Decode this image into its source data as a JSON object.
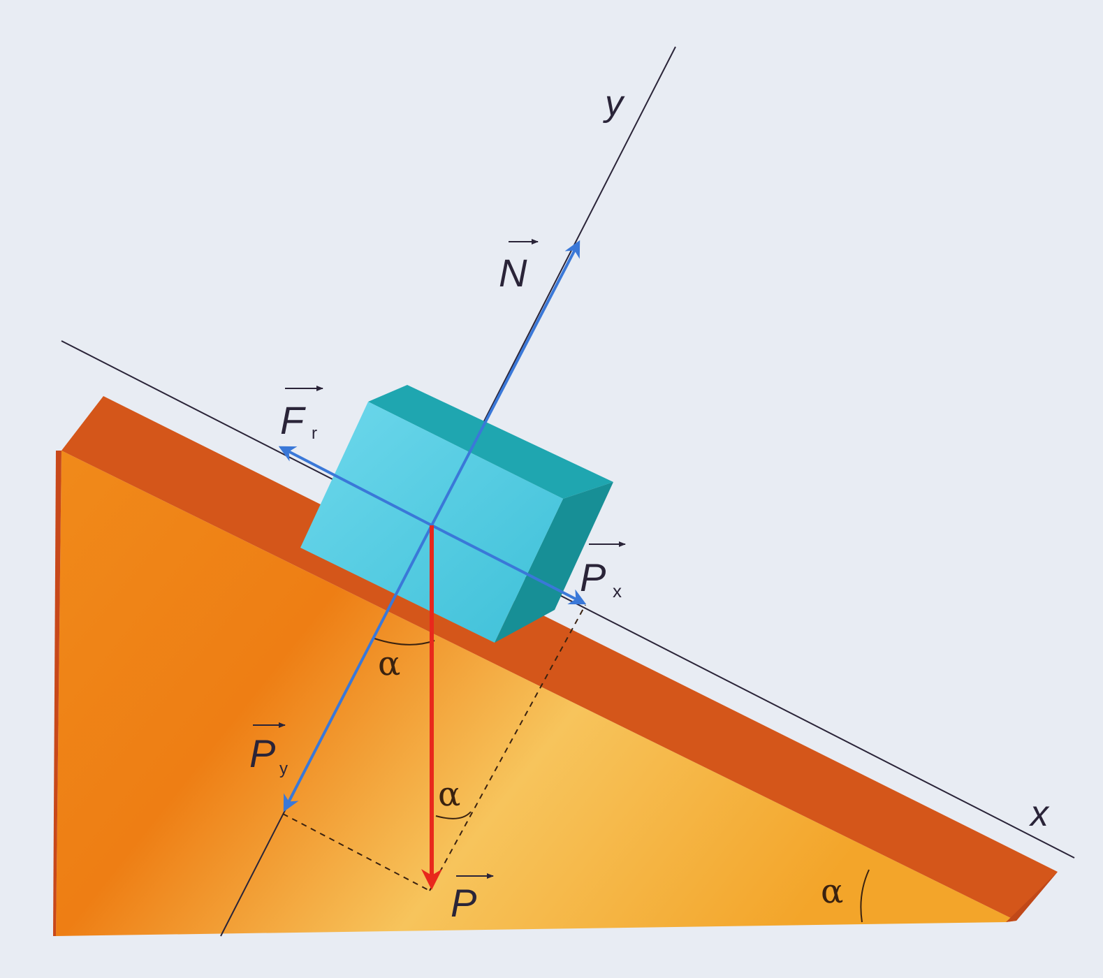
{
  "labels": {
    "y_axis": "y",
    "x_axis": "x",
    "normal": "N",
    "friction": "F",
    "friction_sub": "r",
    "weight_x": "P",
    "weight_x_sub": "x",
    "weight_y": "P",
    "weight_y_sub": "y",
    "weight": "P",
    "angle_top": "α",
    "angle_middle": "α",
    "angle_base": "α"
  },
  "colors": {
    "background": "#e8ecf3",
    "wedge_face": "#f29a1e",
    "wedge_top": "#d4561a",
    "block_front": "#4fcbe0",
    "block_top": "#1fa6b0",
    "block_side": "#178f96",
    "force_blue": "#3a78d8",
    "weight_red": "#e8281c",
    "axis_line": "#2a2438"
  }
}
